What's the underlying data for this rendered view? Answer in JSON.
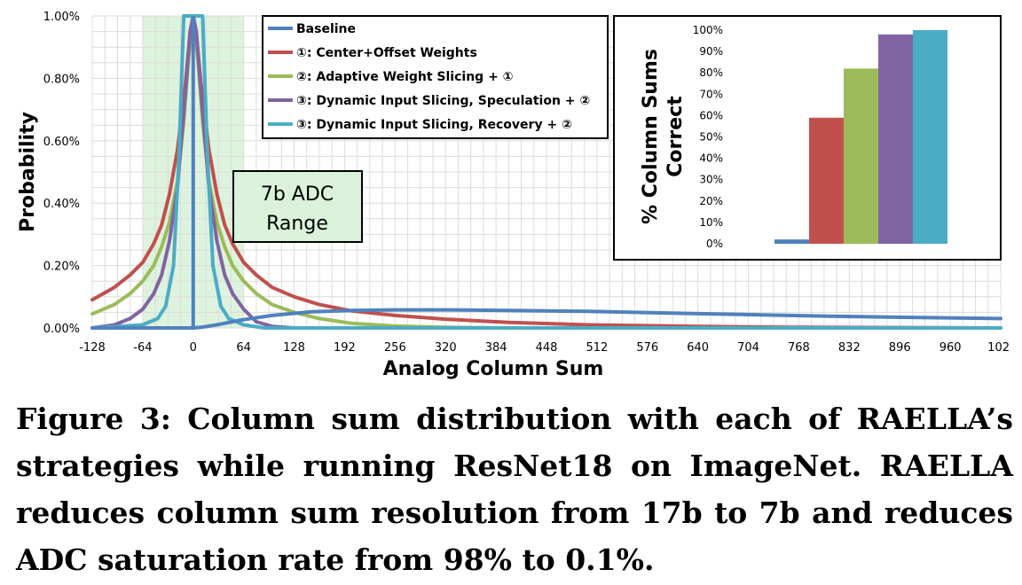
{
  "chart_data": [
    {
      "type": "line",
      "ylabel": "Probability",
      "xlabel": "Analog Column Sum",
      "xlim": [
        -128,
        1024
      ],
      "ylim": [
        0,
        1.0
      ],
      "x_ticks": [
        "-128",
        "-64",
        "0",
        "64",
        "128",
        "192",
        "256",
        "320",
        "384",
        "448",
        "512",
        "576",
        "640",
        "704",
        "768",
        "832",
        "896",
        "960",
        "102"
      ],
      "y_ticks": [
        "0.00%",
        "0.20%",
        "0.40%",
        "0.60%",
        "0.80%",
        "1.00%"
      ],
      "grid": true,
      "legend_position": "top",
      "annotation": {
        "line1": "7b ADC",
        "line2": "Range",
        "range": [
          -64,
          64
        ]
      },
      "series": [
        {
          "name": "Baseline",
          "color": "#4f81bd",
          "points": [
            [
              -128,
              0
            ],
            [
              0,
              0
            ],
            [
              10,
              0.002
            ],
            [
              30,
              0.01
            ],
            [
              60,
              0.025
            ],
            [
              100,
              0.04
            ],
            [
              150,
              0.052
            ],
            [
              200,
              0.056
            ],
            [
              256,
              0.058
            ],
            [
              320,
              0.058
            ],
            [
              400,
              0.056
            ],
            [
              500,
              0.053
            ],
            [
              600,
              0.048
            ],
            [
              700,
              0.043
            ],
            [
              800,
              0.038
            ],
            [
              900,
              0.034
            ],
            [
              1024,
              0.03
            ]
          ]
        },
        {
          "name": "①: Center+Offset Weights",
          "color": "#c0504d",
          "points": [
            [
              -128,
              0.09
            ],
            [
              -100,
              0.13
            ],
            [
              -80,
              0.17
            ],
            [
              -64,
              0.21
            ],
            [
              -50,
              0.27
            ],
            [
              -40,
              0.33
            ],
            [
              -30,
              0.43
            ],
            [
              -20,
              0.57
            ],
            [
              -10,
              0.78
            ],
            [
              -4,
              0.94
            ],
            [
              0,
              1.0
            ],
            [
              4,
              0.94
            ],
            [
              10,
              0.78
            ],
            [
              20,
              0.57
            ],
            [
              30,
              0.43
            ],
            [
              40,
              0.33
            ],
            [
              50,
              0.27
            ],
            [
              64,
              0.21
            ],
            [
              80,
              0.17
            ],
            [
              100,
              0.13
            ],
            [
              128,
              0.1
            ],
            [
              160,
              0.075
            ],
            [
              200,
              0.055
            ],
            [
              256,
              0.04
            ],
            [
              320,
              0.028
            ],
            [
              400,
              0.018
            ],
            [
              500,
              0.01
            ],
            [
              640,
              0.005
            ],
            [
              768,
              0.002
            ],
            [
              1024,
              0
            ]
          ]
        },
        {
          "name": "②: Adaptive Weight Slicing + ①",
          "color": "#9bbb59",
          "points": [
            [
              -128,
              0.045
            ],
            [
              -100,
              0.075
            ],
            [
              -80,
              0.11
            ],
            [
              -64,
              0.15
            ],
            [
              -50,
              0.2
            ],
            [
              -40,
              0.26
            ],
            [
              -30,
              0.34
            ],
            [
              -20,
              0.47
            ],
            [
              -12,
              0.66
            ],
            [
              -6,
              0.86
            ],
            [
              0,
              1.0
            ],
            [
              6,
              0.86
            ],
            [
              12,
              0.66
            ],
            [
              20,
              0.47
            ],
            [
              30,
              0.34
            ],
            [
              40,
              0.26
            ],
            [
              50,
              0.2
            ],
            [
              64,
              0.15
            ],
            [
              80,
              0.11
            ],
            [
              100,
              0.075
            ],
            [
              128,
              0.05
            ],
            [
              160,
              0.03
            ],
            [
              200,
              0.015
            ],
            [
              256,
              0.006
            ],
            [
              320,
              0.002
            ],
            [
              400,
              0
            ],
            [
              1024,
              0
            ]
          ]
        },
        {
          "name": "③: Dynamic Input Slicing, Speculation + ②",
          "color": "#8064a2",
          "points": [
            [
              -128,
              0
            ],
            [
              -100,
              0.01
            ],
            [
              -80,
              0.03
            ],
            [
              -64,
              0.06
            ],
            [
              -50,
              0.11
            ],
            [
              -40,
              0.17
            ],
            [
              -30,
              0.28
            ],
            [
              -20,
              0.45
            ],
            [
              -10,
              0.75
            ],
            [
              -4,
              0.95
            ],
            [
              0,
              1.0
            ],
            [
              4,
              0.95
            ],
            [
              10,
              0.75
            ],
            [
              20,
              0.45
            ],
            [
              30,
              0.28
            ],
            [
              40,
              0.17
            ],
            [
              50,
              0.11
            ],
            [
              64,
              0.06
            ],
            [
              80,
              0.02
            ],
            [
              100,
              0.005
            ],
            [
              128,
              0
            ],
            [
              1024,
              0
            ]
          ]
        },
        {
          "name": "③: Dynamic Input Slicing, Recovery + ②",
          "color": "#4bacc6",
          "points": [
            [
              -128,
              0
            ],
            [
              -64,
              0.01
            ],
            [
              -45,
              0.03
            ],
            [
              -35,
              0.07
            ],
            [
              -25,
              0.2
            ],
            [
              -18,
              0.55
            ],
            [
              -14,
              0.85
            ],
            [
              -12,
              1.0
            ],
            [
              12,
              1.0
            ],
            [
              14,
              0.85
            ],
            [
              18,
              0.55
            ],
            [
              25,
              0.2
            ],
            [
              35,
              0.07
            ],
            [
              45,
              0.03
            ],
            [
              64,
              0.01
            ],
            [
              90,
              0
            ],
            [
              1024,
              0
            ]
          ]
        }
      ]
    },
    {
      "type": "bar",
      "ylabel": "% Column Sums Correct",
      "ylim": [
        0,
        100
      ],
      "y_ticks": [
        "0%",
        "10%",
        "20%",
        "30%",
        "40%",
        "50%",
        "60%",
        "70%",
        "80%",
        "90%",
        "100%"
      ],
      "grid": false,
      "categories": [
        "Baseline",
        "①",
        "②",
        "③ Speculation",
        "③ Recovery"
      ],
      "values": [
        2,
        59,
        82,
        98,
        100
      ],
      "colors": [
        "#4f81bd",
        "#c0504d",
        "#9bbb59",
        "#8064a2",
        "#4bacc6"
      ]
    }
  ],
  "caption": "Figure 3: Column sum distribution with each of RAELLA’s strategies while running ResNet18 on ImageNet. RAELLA reduces column sum resolution from 17b to 7b and reduces ADC saturation rate from 98% to 0.1%."
}
